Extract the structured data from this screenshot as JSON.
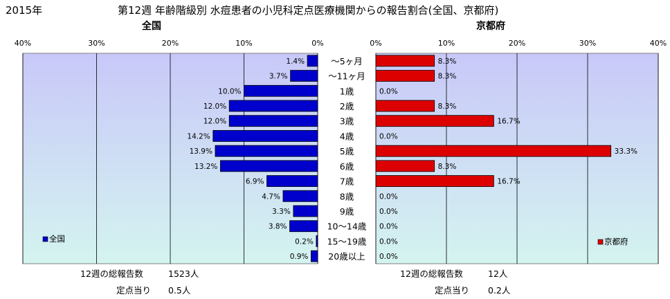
{
  "header": {
    "year": "2015年",
    "title": "第12週 年齢階級別 水痘患者の小児科定点医療機関からの報告割合(全国、京都府)"
  },
  "colors": {
    "plot_bg_top": "#c8c8f8",
    "plot_bg_bottom": "#d4f4f0",
    "national_bar": "#0000cc",
    "kyoto_bar": "#dd0000",
    "grid": "#000000"
  },
  "chart_data": [
    {
      "type": "bar",
      "orientation": "horizontal",
      "title": "全国",
      "categories": [
        "～5ヶ月",
        "～11ヶ月",
        "1歳",
        "2歳",
        "3歳",
        "4歳",
        "5歳",
        "6歳",
        "7歳",
        "8歳",
        "9歳",
        "10～14歳",
        "15～19歳",
        "20歳以上"
      ],
      "series": [
        {
          "name": "全国",
          "values": [
            1.4,
            3.7,
            10.0,
            12.0,
            12.0,
            14.2,
            13.9,
            13.2,
            6.9,
            4.7,
            3.3,
            3.8,
            0.2,
            0.9
          ]
        }
      ],
      "data_labels": [
        "1.4%",
        "3.7%",
        "10.0%",
        "12.0%",
        "12.0%",
        "14.2%",
        "13.9%",
        "13.2%",
        "6.9%",
        "4.7%",
        "3.3%",
        "3.8%",
        "0.2%",
        "0.9%"
      ],
      "xlim": [
        40,
        0
      ],
      "x_ticks": [
        "40%",
        "30%",
        "20%",
        "10%",
        "0%"
      ],
      "legend_position": "bottom-left",
      "grid": true
    },
    {
      "type": "bar",
      "orientation": "horizontal",
      "title": "京都府",
      "categories": [
        "～5ヶ月",
        "～11ヶ月",
        "1歳",
        "2歳",
        "3歳",
        "4歳",
        "5歳",
        "6歳",
        "7歳",
        "8歳",
        "9歳",
        "10～14歳",
        "15～19歳",
        "20歳以上"
      ],
      "series": [
        {
          "name": "京都府",
          "values": [
            8.3,
            8.3,
            0.0,
            8.3,
            16.7,
            0.0,
            33.3,
            8.3,
            16.7,
            0.0,
            0.0,
            0.0,
            0.0,
            0.0
          ]
        }
      ],
      "data_labels": [
        "8.3%",
        "8.3%",
        "0.0%",
        "8.3%",
        "16.7%",
        "0.0%",
        "33.3%",
        "8.3%",
        "16.7%",
        "0.0%",
        "0.0%",
        "0.0%",
        "0.0%",
        "0.0%"
      ],
      "xlim": [
        0,
        40
      ],
      "x_ticks": [
        "0%",
        "10%",
        "20%",
        "30%",
        "40%"
      ],
      "legend_position": "bottom-right",
      "grid": true
    }
  ],
  "footer": {
    "national": {
      "total_label": "12週の総報告数",
      "total_value": "1523人",
      "per_label": "定点当り",
      "per_value": "0.5人"
    },
    "kyoto": {
      "total_label": "12週の総報告数",
      "total_value": "12人",
      "per_label": "定点当り",
      "per_value": "0.2人"
    }
  }
}
